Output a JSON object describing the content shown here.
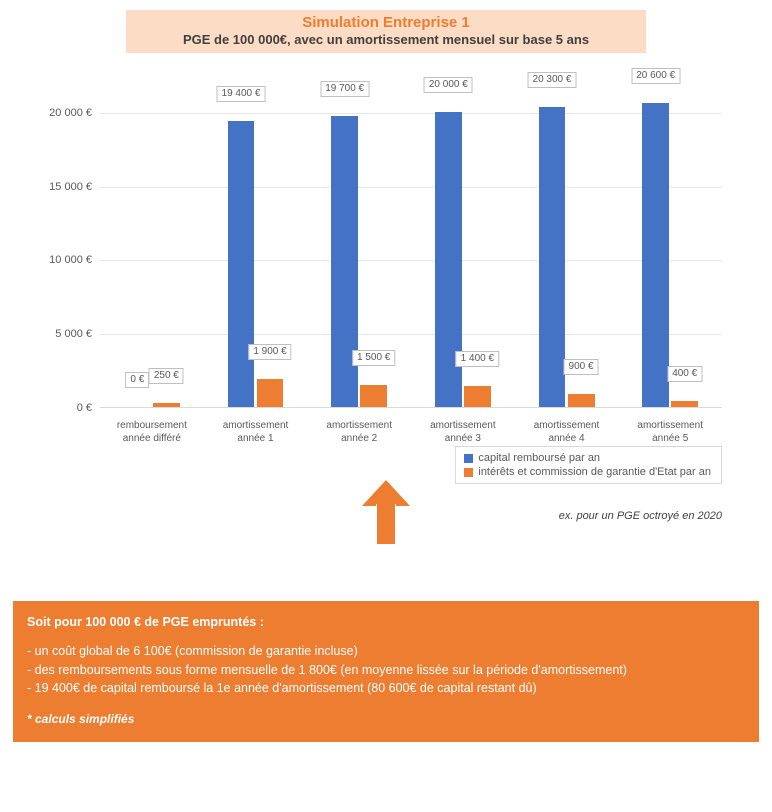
{
  "title": {
    "main": "Simulation Entreprise 1",
    "sub": "PGE de 100 000€, avec un amortissement mensuel sur base 5 ans",
    "bg_color": "#fcdcc4",
    "main_color": "#ed7d31",
    "sub_color": "#404040",
    "main_fontsize": 15,
    "sub_fontsize": 13
  },
  "chart": {
    "type": "grouped-bar",
    "categories": [
      {
        "line1": "remboursement",
        "line2": "année différé"
      },
      {
        "line1": "amortissement",
        "line2": "année 1"
      },
      {
        "line1": "amortissement",
        "line2": "année 2"
      },
      {
        "line1": "amortissement",
        "line2": "année 3"
      },
      {
        "line1": "amortissement",
        "line2": "année 4"
      },
      {
        "line1": "amortissement",
        "line2": "année 5"
      }
    ],
    "series": [
      {
        "name": "capital remboursé par an",
        "color": "#4472c4",
        "values": [
          0,
          19400,
          19700,
          20000,
          20300,
          20600
        ],
        "labels": [
          "0 €",
          "19 400 €",
          "19 700 €",
          "20 000 €",
          "20 300 €",
          "20 600 €"
        ]
      },
      {
        "name": "intérêts et commission de garantie d'Etat par an",
        "color": "#ed7d31",
        "values": [
          250,
          1900,
          1500,
          1400,
          900,
          400
        ],
        "labels": [
          "250 €",
          "1 900 €",
          "1 500 €",
          "1 400 €",
          "900 €",
          "400 €"
        ]
      }
    ],
    "y_axis": {
      "min": 0,
      "max": 21000,
      "ticks": [
        0,
        5000,
        10000,
        15000,
        20000
      ],
      "tick_labels": [
        "0 €",
        "5 000 €",
        "10 000 €",
        "15 000 €",
        "20 000 €"
      ]
    },
    "bar_width_pct": 26,
    "bar_gap_pct": 2,
    "grid_color": "#e8e8e8",
    "axis_color": "#d9d9d9",
    "label_border_color": "#bfbfbf",
    "label_text_color": "#595959",
    "label_fontsize": 10
  },
  "legend": {
    "items": [
      {
        "label": "capital remboursé par an",
        "color": "#4472c4"
      },
      {
        "label": "intérêts et commission de garantie d'Etat par an",
        "color": "#ed7d31"
      }
    ],
    "border_color": "#d9d9d9",
    "fontsize": 11
  },
  "footnote": "ex. pour un PGE octroyé en  2020",
  "arrow": {
    "color": "#ed7d31"
  },
  "summary": {
    "bg_color": "#ed7d31",
    "text_color": "#ffffff",
    "heading": "Soit pour 100 000 € de PGE empruntés :",
    "lines": [
      "- un coût global de 6 100€ (commission de garantie incluse)",
      "- des remboursements sous forme mensuelle de 1 800€ (en moyenne lissée sur la période d'amortissement)",
      "- 19 400€ de capital remboursé la 1e année d'amortissement (80 600€ de capital restant dû)"
    ],
    "foot": "* calculs simplifiés",
    "fontsize": 12.5
  }
}
